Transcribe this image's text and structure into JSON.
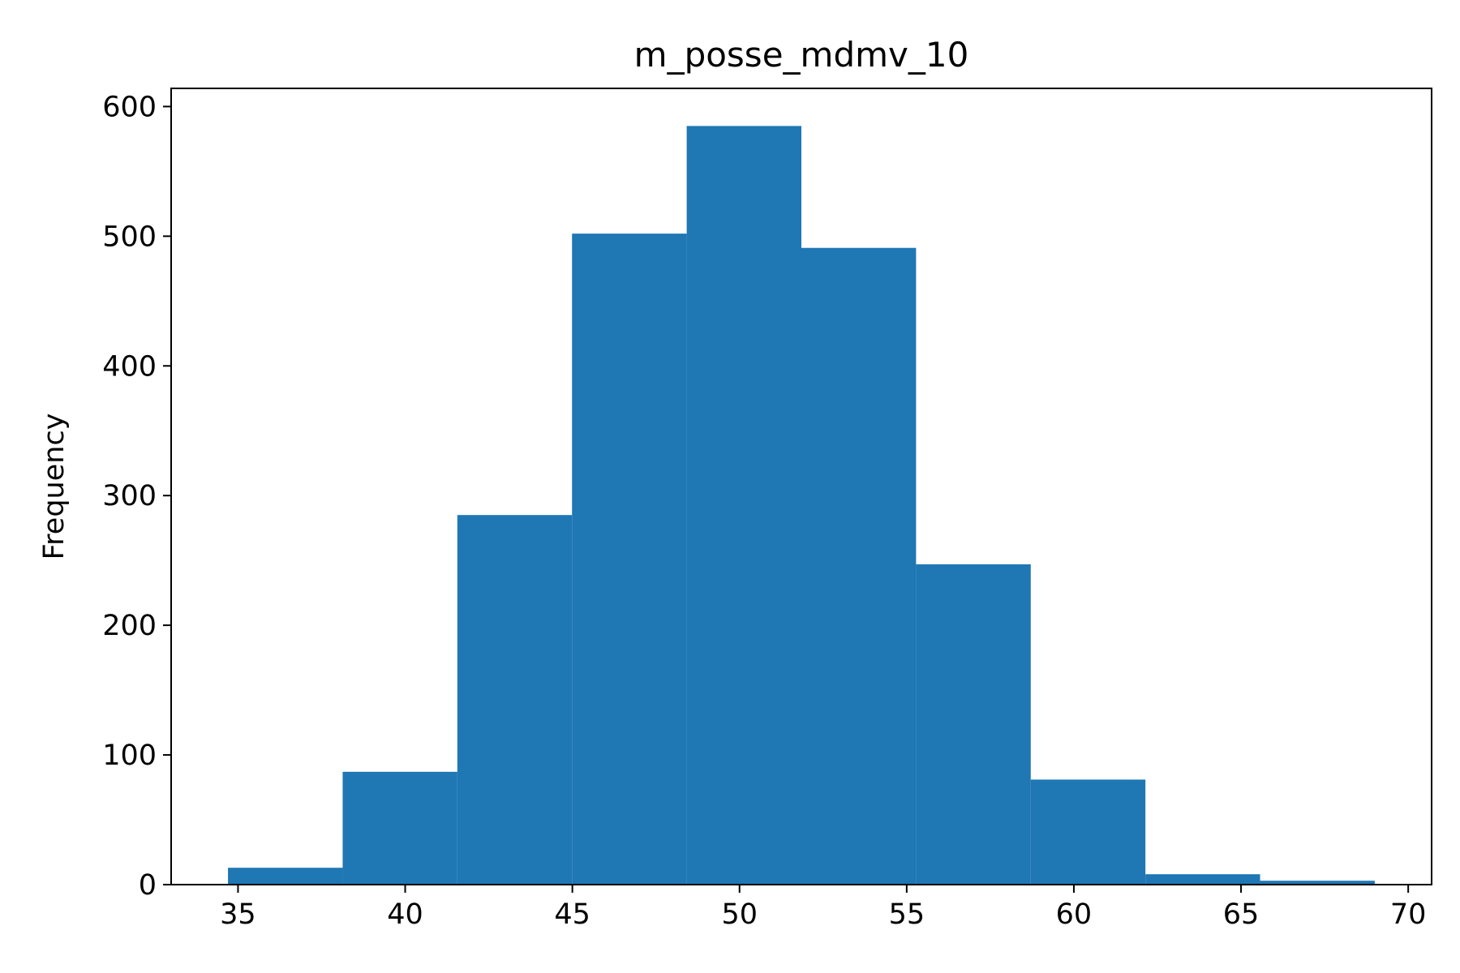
{
  "chart_data": {
    "type": "histogram",
    "title": "m_posse_mdmv_10",
    "xlabel": "",
    "ylabel": "Frequency",
    "bins": [
      {
        "start": 34.7,
        "end": 38.13,
        "count": 13
      },
      {
        "start": 38.13,
        "end": 41.56,
        "count": 87
      },
      {
        "start": 41.56,
        "end": 44.99,
        "count": 285
      },
      {
        "start": 44.99,
        "end": 48.42,
        "count": 502
      },
      {
        "start": 48.42,
        "end": 51.85,
        "count": 585
      },
      {
        "start": 51.85,
        "end": 55.28,
        "count": 491
      },
      {
        "start": 55.28,
        "end": 58.71,
        "count": 247
      },
      {
        "start": 58.71,
        "end": 62.14,
        "count": 81
      },
      {
        "start": 62.14,
        "end": 65.57,
        "count": 8
      },
      {
        "start": 65.57,
        "end": 69.0,
        "count": 3
      }
    ],
    "xticks": [
      35,
      40,
      45,
      50,
      55,
      60,
      65,
      70
    ],
    "yticks": [
      0,
      100,
      200,
      300,
      400,
      500,
      600
    ],
    "xlim": [
      33.0,
      70.7
    ],
    "ylim": [
      0,
      614
    ],
    "bar_color": "#1f77b4",
    "grid": false,
    "legend": "none"
  }
}
